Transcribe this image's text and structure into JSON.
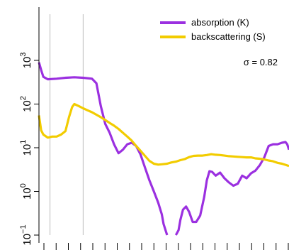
{
  "chart_data": {
    "type": "line",
    "title": "",
    "xlabel": "",
    "ylabel": "",
    "y_scale": "log",
    "ylim": [
      0.1,
      1000
    ],
    "y_ticks": [
      {
        "value": 0.1,
        "label": "10",
        "exp": "−1"
      },
      {
        "value": 1,
        "label": "10",
        "exp": "0"
      },
      {
        "value": 10,
        "label": "10",
        "exp": "1"
      },
      {
        "value": 100,
        "label": "10",
        "exp": "2"
      },
      {
        "value": 1000,
        "label": "10",
        "exp": "3"
      }
    ],
    "x_tick_count": 22,
    "legend_position": "top-right",
    "annotation": "σ = 0.82",
    "colors": {
      "absorption": "#9b30e0",
      "backscattering": "#f2cc00",
      "ref_line": "#bbbbbb"
    },
    "series": [
      {
        "name": "absorption (K)",
        "color": "#9b30e0",
        "segments": [
          [
            [
              0,
              900
            ],
            [
              0.5,
              600
            ],
            [
              1,
              420
            ],
            [
              2,
              370
            ],
            [
              4,
              380
            ],
            [
              6,
              400
            ],
            [
              8,
              410
            ],
            [
              10,
              400
            ],
            [
              12,
              380
            ],
            [
              13,
              300
            ],
            [
              14,
              90
            ],
            [
              15,
              35
            ],
            [
              16,
              22
            ],
            [
              17,
              12
            ],
            [
              18,
              7.5
            ],
            [
              19,
              9
            ],
            [
              20,
              12
            ],
            [
              21,
              13
            ],
            [
              22,
              11
            ],
            [
              23,
              7
            ],
            [
              24,
              3.5
            ],
            [
              25,
              1.8
            ],
            [
              26,
              1.0
            ],
            [
              27,
              0.55
            ],
            [
              27.8,
              0.3
            ],
            [
              28.2,
              0.18
            ],
            [
              29,
              0.1
            ]
          ],
          [
            [
              31,
              0.1
            ],
            [
              31.6,
              0.13
            ],
            [
              32,
              0.22
            ],
            [
              32.6,
              0.38
            ],
            [
              33.3,
              0.45
            ],
            [
              34,
              0.34
            ],
            [
              34.8,
              0.2
            ],
            [
              35.6,
              0.2
            ],
            [
              36.5,
              0.28
            ],
            [
              37.4,
              0.75
            ],
            [
              38,
              1.8
            ],
            [
              38.6,
              2.9
            ],
            [
              39.2,
              2.8
            ],
            [
              40,
              2.3
            ],
            [
              41,
              2.7
            ],
            [
              42,
              2.0
            ],
            [
              43,
              1.6
            ],
            [
              44,
              1.35
            ],
            [
              45,
              1.5
            ],
            [
              46,
              2.3
            ],
            [
              47,
              2.0
            ],
            [
              48,
              2.6
            ],
            [
              49,
              3.0
            ],
            [
              50,
              4.0
            ],
            [
              51,
              6.0
            ],
            [
              52,
              11
            ],
            [
              53,
              12
            ],
            [
              54,
              12
            ],
            [
              55,
              13
            ],
            [
              55.8,
              13.5
            ],
            [
              56.2,
              12
            ],
            [
              56.6,
              9
            ]
          ]
        ]
      },
      {
        "name": "backscattering (S)",
        "color": "#f2cc00",
        "segments": [
          [
            [
              0,
              55
            ],
            [
              0.5,
              25
            ],
            [
              1,
              20
            ],
            [
              2,
              17
            ],
            [
              3,
              18
            ],
            [
              4,
              18
            ],
            [
              5,
              20
            ],
            [
              6,
              24
            ],
            [
              6.8,
              50
            ],
            [
              7.5,
              85
            ],
            [
              8,
              100
            ],
            [
              9,
              90
            ],
            [
              10,
              80
            ],
            [
              11,
              72
            ],
            [
              12,
              65
            ],
            [
              13,
              57
            ],
            [
              14,
              50
            ],
            [
              15,
              43
            ],
            [
              16,
              37
            ],
            [
              17,
              32
            ],
            [
              18,
              27
            ],
            [
              19,
              22
            ],
            [
              20,
              18
            ],
            [
              21,
              14.5
            ],
            [
              22,
              11
            ],
            [
              23,
              8.5
            ],
            [
              24,
              6.5
            ],
            [
              25,
              5
            ],
            [
              26,
              4.3
            ],
            [
              27,
              4.1
            ],
            [
              28,
              4.2
            ],
            [
              29,
              4.3
            ],
            [
              30,
              4.6
            ],
            [
              31,
              4.8
            ],
            [
              32,
              5.2
            ],
            [
              33,
              5.5
            ],
            [
              34,
              6.1
            ],
            [
              35,
              6.5
            ],
            [
              36,
              6.6
            ],
            [
              37,
              6.6
            ],
            [
              38,
              6.8
            ],
            [
              39,
              7.1
            ],
            [
              40,
              6.9
            ],
            [
              41,
              6.8
            ],
            [
              42,
              6.6
            ],
            [
              43,
              6.4
            ],
            [
              44,
              6.3
            ],
            [
              45,
              6.2
            ],
            [
              46,
              6.1
            ],
            [
              47,
              6.0
            ],
            [
              48,
              6.0
            ],
            [
              49,
              5.7
            ],
            [
              50,
              5.6
            ],
            [
              51,
              5.4
            ],
            [
              52,
              5.1
            ],
            [
              53,
              4.9
            ],
            [
              54,
              4.5
            ],
            [
              55,
              4.3
            ],
            [
              56,
              4.0
            ],
            [
              56.6,
              3.8
            ]
          ]
        ]
      }
    ],
    "reference_lines_x": [
      2.5,
      10
    ]
  }
}
